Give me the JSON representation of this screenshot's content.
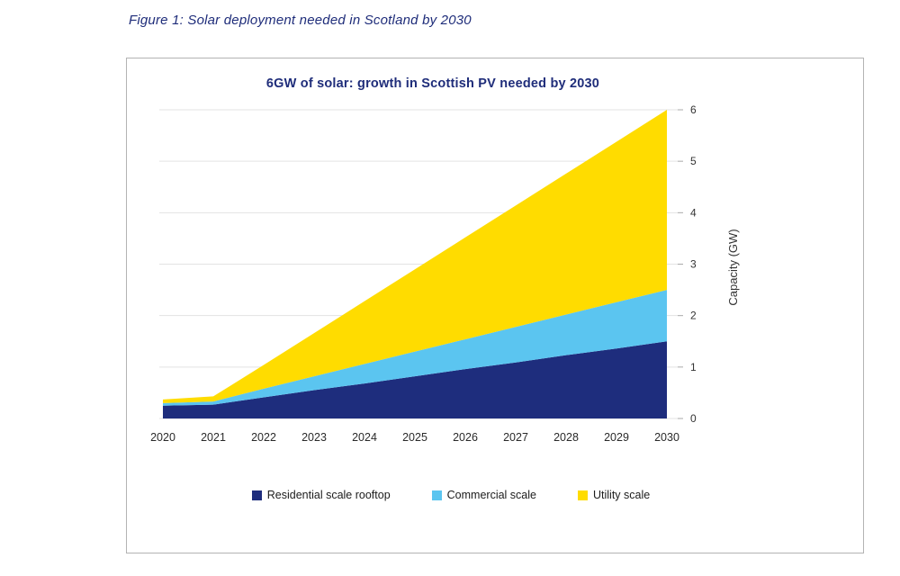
{
  "figure_caption": "Figure 1: Solar deployment needed in Scotland by 2030",
  "chart_data": {
    "type": "area",
    "stacked": true,
    "title": "6GW of solar: growth in Scottish PV needed by 2030",
    "x": [
      "2020",
      "2021",
      "2022",
      "2023",
      "2024",
      "2025",
      "2026",
      "2027",
      "2028",
      "2029",
      "2030"
    ],
    "series": [
      {
        "name": "Residential scale rooftop",
        "color": "#1e2d7d",
        "values": [
          0.25,
          0.27,
          0.41,
          0.55,
          0.68,
          0.82,
          0.96,
          1.09,
          1.23,
          1.36,
          1.5
        ]
      },
      {
        "name": "Commercial scale",
        "color": "#5bc5f0",
        "values": [
          0.05,
          0.06,
          0.17,
          0.27,
          0.38,
          0.48,
          0.58,
          0.69,
          0.79,
          0.9,
          1.0
        ]
      },
      {
        "name": "Utility scale",
        "color": "#ffdc00",
        "values": [
          0.07,
          0.1,
          0.46,
          0.84,
          1.22,
          1.6,
          1.98,
          2.36,
          2.74,
          3.12,
          3.5
        ]
      }
    ],
    "ylabel": "Capacity (GW)",
    "ylim": [
      0,
      6
    ],
    "yticks": [
      0,
      1,
      2,
      3,
      4,
      5,
      6
    ],
    "grid": true,
    "legend_position": "bottom"
  },
  "colors": {
    "title_text": "#1f2d7a",
    "caption_text": "#1f2d7a",
    "grid_line": "#e3e3e3",
    "tick_mark": "#aaaaaa",
    "axis_text": "#333333"
  }
}
